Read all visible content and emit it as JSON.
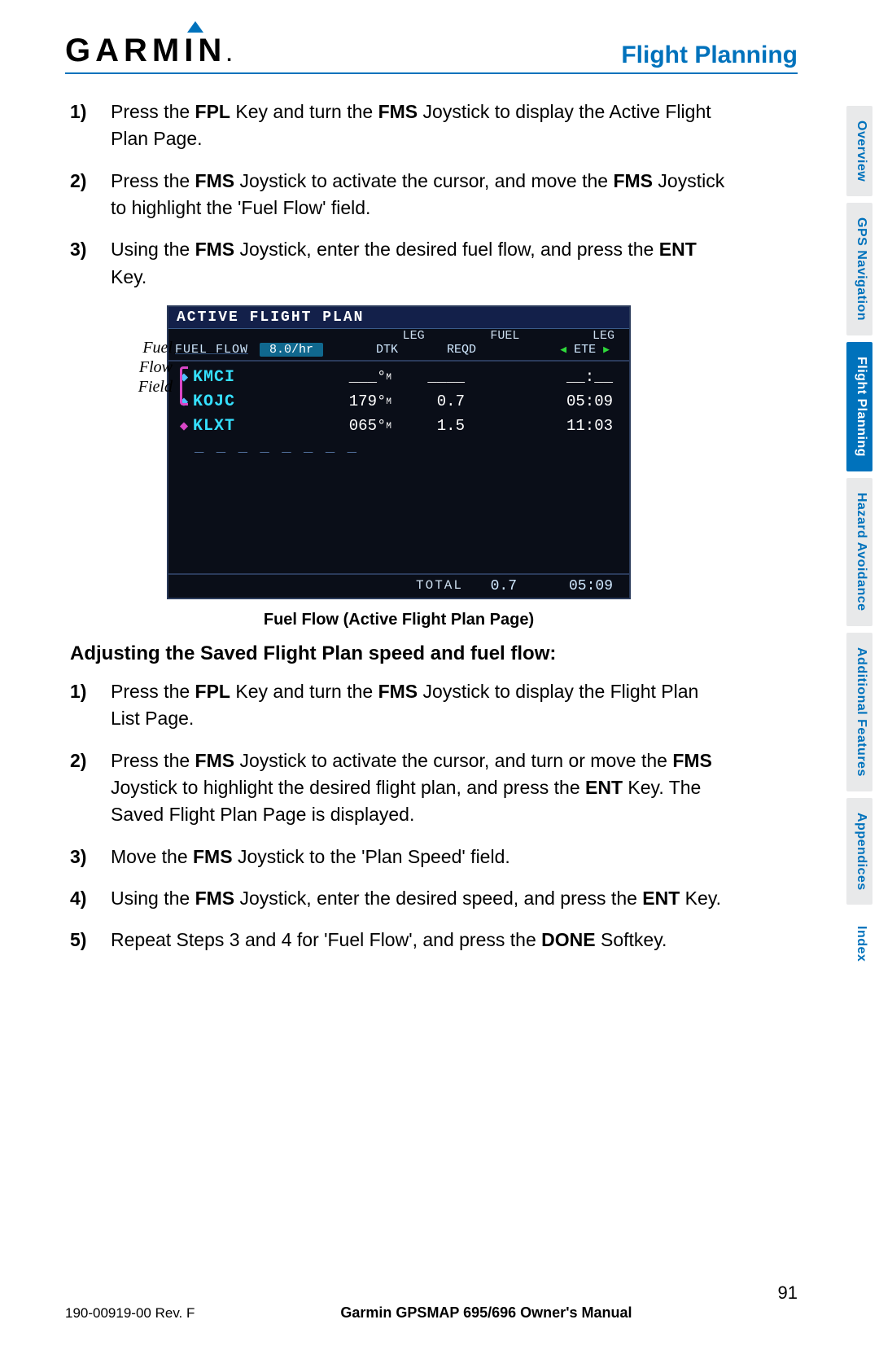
{
  "header": {
    "logo_text": "GARMIN",
    "section_title": "Flight Planning"
  },
  "steps_a": [
    {
      "num": "1)",
      "html": "Press the <b>FPL</b> Key and turn the <b>FMS</b> Joystick to display the Active Flight Plan Page."
    },
    {
      "num": "2)",
      "html": "Press the <b>FMS</b> Joystick to activate the cursor, and move the <b>FMS</b> Joystick to highlight the 'Fuel Flow' field."
    },
    {
      "num": "3)",
      "html": "Using the <b>FMS</b> Joystick, enter the desired fuel flow, and press the <b>ENT</b> Key."
    }
  ],
  "callout": "Fuel\nFlow\nField",
  "device": {
    "title": "ACTIVE FLIGHT PLAN",
    "hdr1": {
      "leg": "LEG",
      "fuel": "FUEL",
      "leg2": "LEG"
    },
    "hdr2": {
      "fuel_flow_label": "FUEL FLOW",
      "fuel_flow_value": "8.0/hr",
      "dtk": "DTK",
      "reqd": "REQD",
      "ete": "ETE"
    },
    "rows": [
      {
        "name": "KMCI",
        "dtk": "___°ᴍ",
        "fuel": "____",
        "ete": "__:__",
        "color": "#50c0ff"
      },
      {
        "name": "KOJC",
        "dtk": "179°ᴍ",
        "fuel": "0.7",
        "ete": "05:09",
        "color": "#50c0ff"
      },
      {
        "name": "KLXT",
        "dtk": "065°ᴍ",
        "fuel": "1.5",
        "ete": "11:03",
        "color": "#d946c6"
      }
    ],
    "total": {
      "label": "TOTAL",
      "fuel": "0.7",
      "ete": "05:09"
    }
  },
  "figcaption": "Fuel Flow (Active Flight Plan Page)",
  "subhead": "Adjusting the Saved Flight Plan speed and fuel flow:",
  "steps_b": [
    {
      "num": "1)",
      "html": "Press the <b>FPL</b> Key and turn the <b>FMS</b> Joystick to display the Flight Plan List Page."
    },
    {
      "num": "2)",
      "html": "Press the <b>FMS</b> Joystick to activate the cursor, and turn or move the <b>FMS</b> Joystick to highlight the desired flight plan, and press the <b>ENT</b> Key.  The Saved Flight Plan Page is displayed."
    },
    {
      "num": "3)",
      "html": "Move the <b>FMS</b> Joystick to the 'Plan Speed' field."
    },
    {
      "num": "4)",
      "html": "Using the <b>FMS</b> Joystick, enter the desired speed, and press the <b>ENT</b> Key."
    },
    {
      "num": "5)",
      "html": "Repeat Steps 3 and 4 for 'Fuel Flow', and press the <b>DONE</b> Softkey."
    }
  ],
  "tabs": [
    {
      "label": "Overview",
      "active": false
    },
    {
      "label": "GPS Navigation",
      "active": false
    },
    {
      "label": "Flight Planning",
      "active": true
    },
    {
      "label": "Hazard Avoidance",
      "active": false
    },
    {
      "label": "Additional Features",
      "active": false
    },
    {
      "label": "Appendices",
      "active": false
    },
    {
      "label": "Index",
      "active": false,
      "noback": true
    }
  ],
  "footer": {
    "left": "190-00919-00  Rev. F",
    "mid": "Garmin GPSMAP 695/696 Owner's Manual",
    "page": "91"
  }
}
